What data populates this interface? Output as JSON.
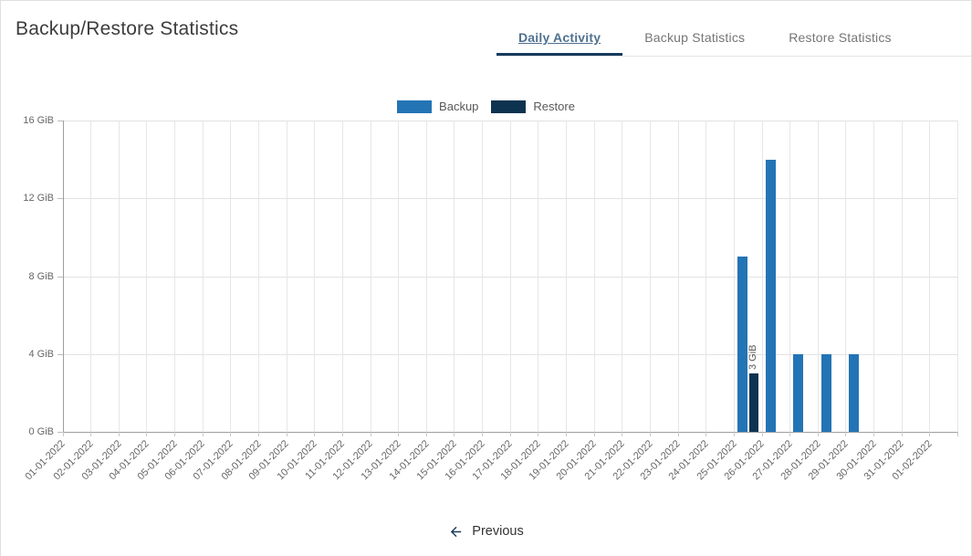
{
  "header": {
    "title": "Backup/Restore Statistics",
    "tabs": [
      {
        "label": "Daily Activity",
        "active": true
      },
      {
        "label": "Backup Statistics",
        "active": false
      },
      {
        "label": "Restore Statistics",
        "active": false
      }
    ]
  },
  "colors": {
    "backup": "#2374b5",
    "restore": "#0d3350",
    "active_tab_underline": "#17395c",
    "active_tab_text": "#4f7190",
    "inactive_tab_text": "#757575",
    "gridline": "#e2e2e2",
    "axis_text": "#666666"
  },
  "chart_data": {
    "type": "bar",
    "title": "",
    "xlabel": "",
    "ylabel": "",
    "ylim": [
      0,
      16
    ],
    "grid": true,
    "legend_position": "top",
    "yticks": [
      0,
      4,
      8,
      12,
      16
    ],
    "ytick_labels": [
      "0 GiB",
      "4 GiB",
      "8 GiB",
      "12 GiB",
      "16 GiB"
    ],
    "categories": [
      "01-01-2022",
      "02-01-2022",
      "03-01-2022",
      "04-01-2022",
      "05-01-2022",
      "06-01-2022",
      "07-01-2022",
      "08-01-2022",
      "09-01-2022",
      "10-01-2022",
      "11-01-2022",
      "12-01-2022",
      "13-01-2022",
      "14-01-2022",
      "15-01-2022",
      "16-01-2022",
      "17-01-2022",
      "18-01-2022",
      "19-01-2022",
      "20-01-2022",
      "21-01-2022",
      "22-01-2022",
      "23-01-2022",
      "24-01-2022",
      "25-01-2022",
      "26-01-2022",
      "27-01-2022",
      "28-01-2022",
      "29-01-2022",
      "30-01-2022",
      "31-01-2022",
      "01-02-2022"
    ],
    "series": [
      {
        "name": "Backup",
        "color": "#2374b5",
        "show_value_labels": false,
        "values": [
          0,
          0,
          0,
          0,
          0,
          0,
          0,
          0,
          0,
          0,
          0,
          0,
          0,
          0,
          0,
          0,
          0,
          0,
          0,
          0,
          0,
          0,
          0,
          0,
          9,
          14,
          4,
          4,
          4,
          0,
          0,
          0
        ]
      },
      {
        "name": "Restore",
        "color": "#0d3350",
        "show_value_labels": true,
        "value_label_suffix": " GiB",
        "values": [
          0,
          0,
          0,
          0,
          0,
          0,
          0,
          0,
          0,
          0,
          0,
          0,
          0,
          0,
          0,
          0,
          0,
          0,
          0,
          0,
          0,
          0,
          0,
          0,
          3,
          0,
          0,
          0,
          0,
          0,
          0,
          0
        ]
      }
    ],
    "annotations": [
      {
        "category": "25-01-2022",
        "series": "Restore",
        "text": "3 GiB"
      }
    ]
  },
  "footer": {
    "previous_label": "Previous"
  }
}
